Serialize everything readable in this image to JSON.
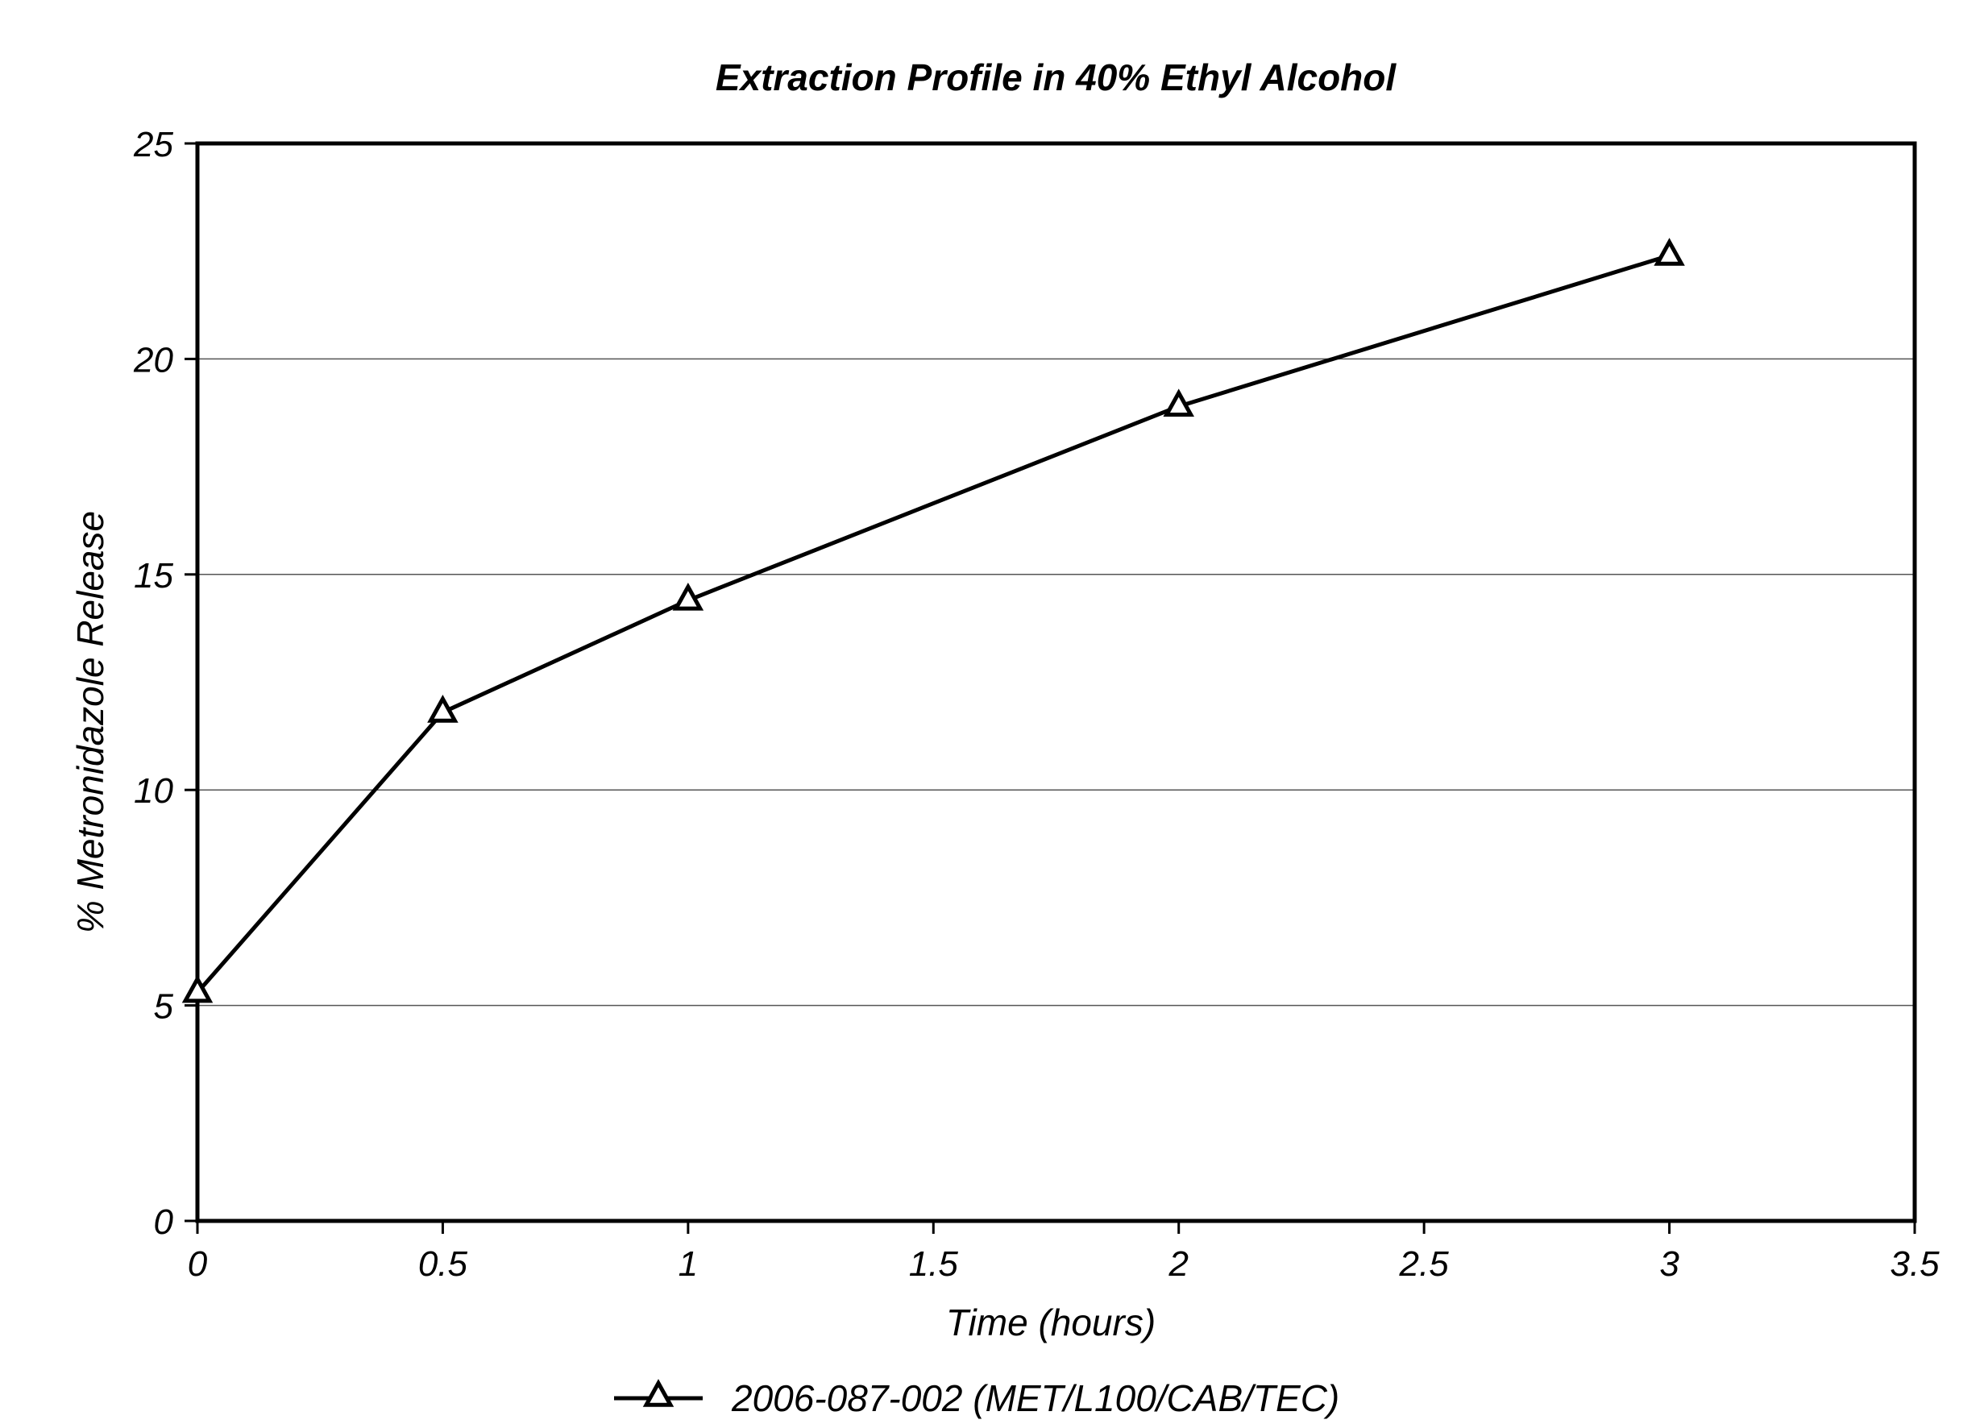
{
  "chart_data": {
    "type": "line",
    "title": "Extraction Profile in 40% Ethyl Alcohol",
    "xlabel": "Time (hours)",
    "ylabel": "% Metronidazole Release",
    "xlim": [
      0,
      3.5
    ],
    "ylim": [
      0,
      25
    ],
    "xticks": [
      "0",
      "0.5",
      "1",
      "1.5",
      "2",
      "2.5",
      "3",
      "3.5"
    ],
    "yticks": [
      "0",
      "5",
      "10",
      "15",
      "20",
      "25"
    ],
    "grid": "horizontal",
    "legend_position": "bottom-center",
    "series": [
      {
        "name": "2006-087-002 (MET/L100/CAB/TEC)",
        "marker": "triangle-open",
        "color": "#000000",
        "x": [
          0,
          0.5,
          1,
          2,
          3
        ],
        "y": [
          5.3,
          11.8,
          14.4,
          18.9,
          22.4
        ]
      }
    ]
  }
}
